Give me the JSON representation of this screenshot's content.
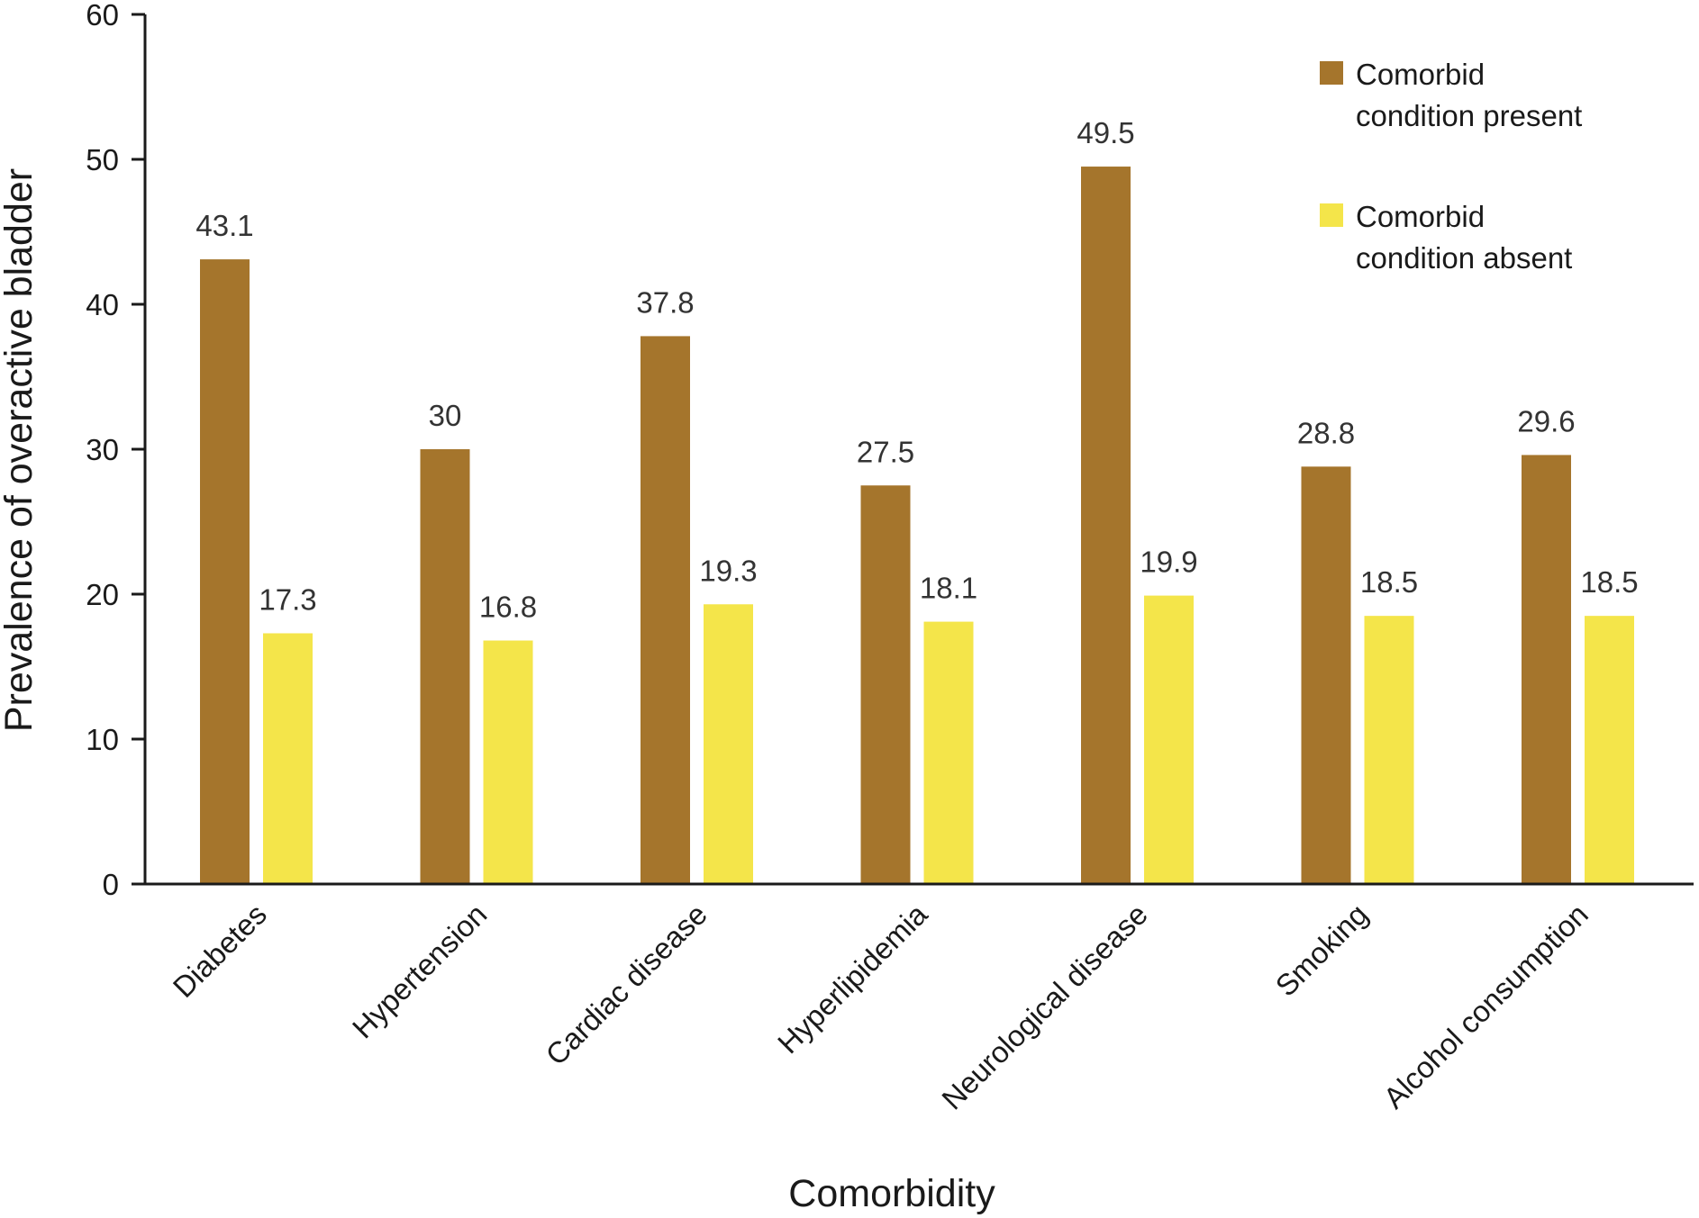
{
  "chart_data": {
    "type": "bar",
    "xlabel": "Comorbidity",
    "ylabel": "Prevalence of overactive bladder",
    "ylim": [
      0,
      60
    ],
    "yticks": [
      0,
      10,
      20,
      30,
      40,
      50,
      60
    ],
    "grid": false,
    "legend_position": "top-right",
    "categories": [
      "Diabetes",
      "Hypertension",
      "Cardiac disease",
      "Hyperlipidemia",
      "Neurological disease",
      "Smoking",
      "Alcohol consumption"
    ],
    "series": [
      {
        "name": "Comorbid condition present",
        "legend_lines": [
          "Comorbid",
          "condition present"
        ],
        "color": "#a5752c",
        "values": [
          43.1,
          30,
          37.8,
          27.5,
          49.5,
          28.8,
          29.6
        ],
        "labels": [
          "43.1",
          "30",
          "37.8",
          "27.5",
          "49.5",
          "28.8",
          "29.6"
        ]
      },
      {
        "name": "Comorbid condition absent",
        "legend_lines": [
          "Comorbid",
          "condition absent"
        ],
        "color": "#f4e54a",
        "values": [
          17.3,
          16.8,
          19.3,
          18.1,
          19.9,
          18.5,
          18.5
        ],
        "labels": [
          "17.3",
          "16.8",
          "19.3",
          "18.1",
          "19.9",
          "18.5",
          "18.5"
        ]
      }
    ]
  }
}
